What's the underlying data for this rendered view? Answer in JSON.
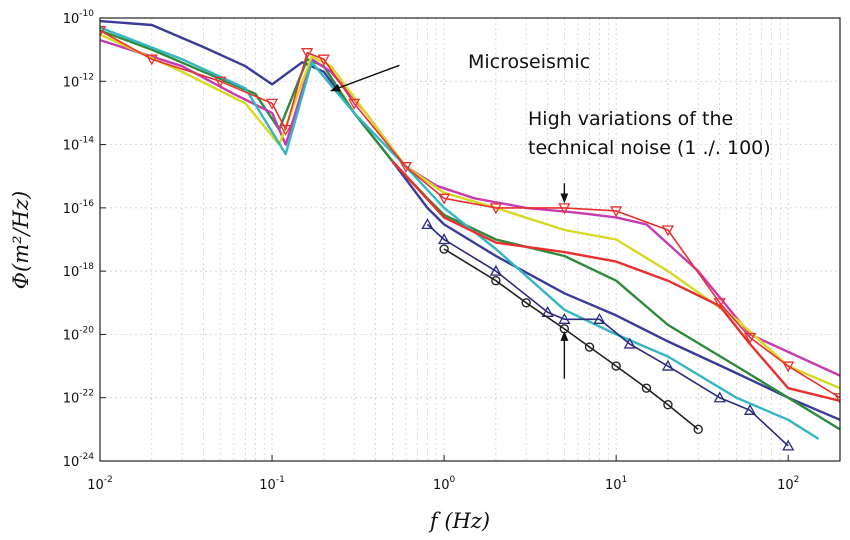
{
  "chart_data": {
    "type": "line",
    "xscale": "log",
    "yscale": "log",
    "xlim": [
      0.01,
      200
    ],
    "ylim": [
      1e-24,
      1e-10
    ],
    "grid": true,
    "xlabel": "f (Hz)",
    "ylabel": "Φ(m²/Hz)",
    "x_ticks": [
      {
        "base": "10",
        "exp": "-2",
        "value": 0.01
      },
      {
        "base": "10",
        "exp": "-1",
        "value": 0.1
      },
      {
        "base": "10",
        "exp": "0",
        "value": 1
      },
      {
        "base": "10",
        "exp": "1",
        "value": 10
      },
      {
        "base": "10",
        "exp": "2",
        "value": 100
      }
    ],
    "y_ticks": [
      {
        "base": "10",
        "exp": "-10",
        "value": 1e-10
      },
      {
        "base": "10",
        "exp": "-12",
        "value": 1e-12
      },
      {
        "base": "10",
        "exp": "-14",
        "value": 1e-14
      },
      {
        "base": "10",
        "exp": "-16",
        "value": 1e-16
      },
      {
        "base": "10",
        "exp": "-18",
        "value": 1e-18
      },
      {
        "base": "10",
        "exp": "-20",
        "value": 1e-20
      },
      {
        "base": "10",
        "exp": "-22",
        "value": 1e-22
      },
      {
        "base": "10",
        "exp": "-24",
        "value": 1e-24
      }
    ],
    "annotations": [
      {
        "lines": [
          "Microseismic"
        ],
        "arrow_from": [
          0.55,
          3.2e-12
        ],
        "arrow_to": [
          0.22,
          5e-13
        ]
      },
      {
        "lines": [
          "High variations of the",
          "technical noise (1 ./. 100)"
        ],
        "arrow_from": [
          5,
          6e-16
        ],
        "arrow_to": [
          5,
          1.5e-16
        ]
      },
      {
        "lines": [],
        "arrow_from": [
          5,
          4e-22
        ],
        "arrow_to": [
          5,
          1.2e-20
        ]
      }
    ],
    "series": [
      {
        "color": "#3b3b9a",
        "markers": false,
        "points": [
          [
            0.01,
            8e-11
          ],
          [
            0.02,
            6e-11
          ],
          [
            0.04,
            1.2e-11
          ],
          [
            0.07,
            3e-12
          ],
          [
            0.1,
            8e-13
          ],
          [
            0.15,
            4e-12
          ],
          [
            0.2,
            2e-12
          ],
          [
            0.3,
            1e-13
          ],
          [
            0.5,
            3e-15
          ],
          [
            0.8,
            1e-16
          ],
          [
            1,
            3e-17
          ],
          [
            2,
            3e-18
          ],
          [
            5,
            2e-19
          ],
          [
            10,
            4e-20
          ],
          [
            20,
            6e-21
          ],
          [
            50,
            6e-22
          ],
          [
            100,
            1e-22
          ],
          [
            200,
            2e-23
          ]
        ]
      },
      {
        "color": "#2e8b3e",
        "markers": false,
        "points": [
          [
            0.01,
            4e-11
          ],
          [
            0.02,
            1e-11
          ],
          [
            0.04,
            2e-12
          ],
          [
            0.08,
            4e-13
          ],
          [
            0.11,
            3e-14
          ],
          [
            0.16,
            5e-12
          ],
          [
            0.2,
            3e-12
          ],
          [
            0.3,
            1e-13
          ],
          [
            0.5,
            3e-15
          ],
          [
            0.8,
            2e-16
          ],
          [
            1,
            6e-17
          ],
          [
            2,
            1e-17
          ],
          [
            5,
            3e-18
          ],
          [
            10,
            5e-19
          ],
          [
            20,
            2e-20
          ],
          [
            50,
            1e-21
          ],
          [
            100,
            1e-22
          ],
          [
            200,
            1e-23
          ]
        ]
      },
      {
        "color": "#c73bb0",
        "markers": false,
        "points": [
          [
            0.01,
            2e-11
          ],
          [
            0.03,
            3e-12
          ],
          [
            0.06,
            4e-13
          ],
          [
            0.1,
            1e-13
          ],
          [
            0.12,
            1e-14
          ],
          [
            0.17,
            5e-12
          ],
          [
            0.22,
            2e-12
          ],
          [
            0.35,
            1e-13
          ],
          [
            0.6,
            2e-15
          ],
          [
            0.9,
            5e-16
          ],
          [
            1.5,
            2e-16
          ],
          [
            3,
            1e-16
          ],
          [
            6,
            7e-17
          ],
          [
            10,
            5e-17
          ],
          [
            15,
            3e-17
          ],
          [
            30,
            1e-18
          ],
          [
            60,
            1e-20
          ],
          [
            200,
            5e-22
          ]
        ]
      },
      {
        "color": "#d8d820",
        "markers": false,
        "points": [
          [
            0.01,
            3e-11
          ],
          [
            0.03,
            2e-12
          ],
          [
            0.07,
            2e-13
          ],
          [
            0.11,
            1e-14
          ],
          [
            0.17,
            6e-12
          ],
          [
            0.22,
            3e-12
          ],
          [
            0.35,
            1e-13
          ],
          [
            0.6,
            2e-15
          ],
          [
            1,
            3e-16
          ],
          [
            2,
            1e-16
          ],
          [
            5,
            2e-17
          ],
          [
            10,
            1e-17
          ],
          [
            20,
            1e-18
          ],
          [
            50,
            3e-20
          ],
          [
            100,
            1e-21
          ],
          [
            200,
            2e-22
          ]
        ]
      },
      {
        "color": "#34b6c2",
        "markers": false,
        "points": [
          [
            0.01,
            5e-11
          ],
          [
            0.03,
            5e-12
          ],
          [
            0.07,
            6e-13
          ],
          [
            0.12,
            5e-15
          ],
          [
            0.17,
            4e-12
          ],
          [
            0.3,
            1e-13
          ],
          [
            0.6,
            2e-15
          ],
          [
            1,
            1e-16
          ],
          [
            2,
            5e-18
          ],
          [
            5,
            6e-20
          ],
          [
            10,
            1e-20
          ],
          [
            20,
            2e-21
          ],
          [
            50,
            1e-22
          ],
          [
            100,
            2e-23
          ],
          [
            150,
            5e-24
          ]
        ]
      },
      {
        "color": "#e83030",
        "markers": true,
        "marker": "triangle-down",
        "points": [
          [
            0.01,
            4e-11
          ],
          [
            0.02,
            5e-12
          ],
          [
            0.05,
            1e-12
          ],
          [
            0.1,
            2e-13
          ],
          [
            0.12,
            3e-14
          ],
          [
            0.16,
            8e-12
          ],
          [
            0.2,
            5e-12
          ],
          [
            0.3,
            2e-13
          ],
          [
            0.6,
            2e-15
          ],
          [
            1,
            2e-16
          ],
          [
            2,
            1e-16
          ],
          [
            5,
            1e-16
          ],
          [
            10,
            8e-17
          ],
          [
            20,
            2e-17
          ],
          [
            40,
            1e-19
          ],
          [
            60,
            8e-21
          ],
          [
            100,
            1e-21
          ],
          [
            200,
            1e-22
          ]
        ]
      },
      {
        "color": "#e83030",
        "markers": false,
        "points": [
          [
            0.5,
            3e-15
          ],
          [
            1,
            5e-17
          ],
          [
            2,
            8e-18
          ],
          [
            5,
            4e-18
          ],
          [
            10,
            2e-18
          ],
          [
            20,
            5e-19
          ],
          [
            40,
            8e-20
          ],
          [
            60,
            5e-21
          ],
          [
            100,
            2e-22
          ],
          [
            200,
            8e-23
          ]
        ]
      },
      {
        "color": "#2b2b80",
        "markers": true,
        "marker": "triangle-up",
        "points": [
          [
            0.8,
            3e-17
          ],
          [
            1,
            1e-17
          ],
          [
            2,
            1e-18
          ],
          [
            4,
            5e-20
          ],
          [
            5,
            3e-20
          ],
          [
            8,
            3e-20
          ],
          [
            12,
            5e-21
          ],
          [
            20,
            1e-21
          ],
          [
            40,
            1e-22
          ],
          [
            60,
            4e-23
          ],
          [
            100,
            3e-24
          ]
        ]
      },
      {
        "color": "#222222",
        "markers": true,
        "marker": "circle",
        "points": [
          [
            1,
            5e-18
          ],
          [
            2,
            5e-19
          ],
          [
            3,
            1e-19
          ],
          [
            5,
            1.5e-20
          ],
          [
            7,
            4e-21
          ],
          [
            10,
            1e-21
          ],
          [
            15,
            2e-22
          ],
          [
            20,
            6e-23
          ],
          [
            30,
            1e-23
          ]
        ]
      }
    ]
  }
}
